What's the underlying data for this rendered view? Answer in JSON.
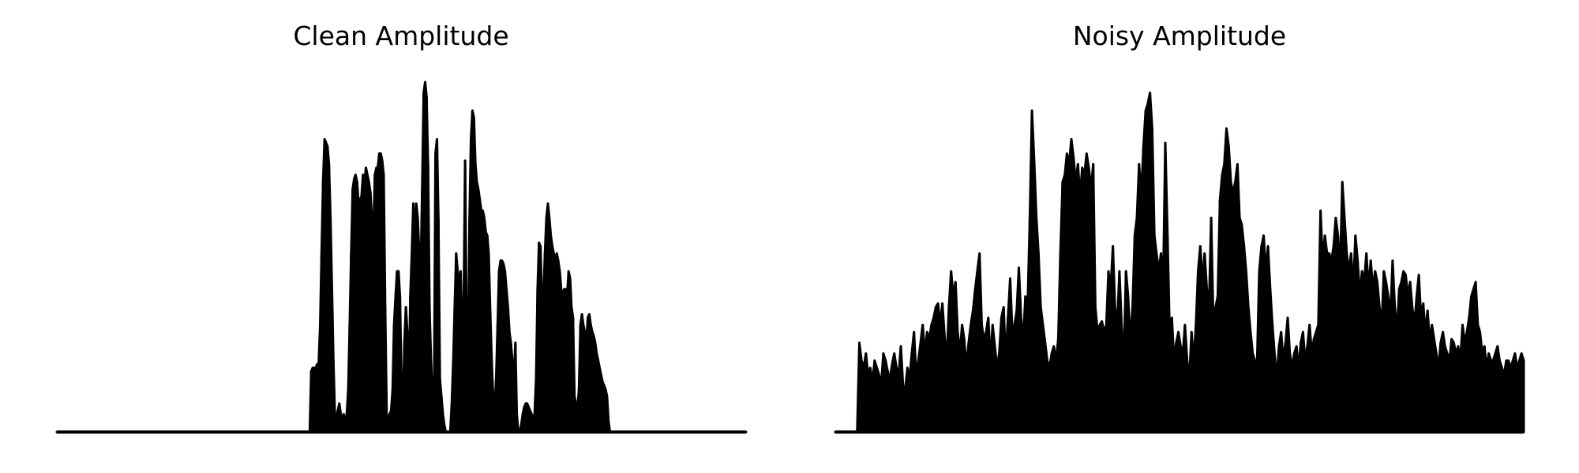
{
  "chart_data": [
    {
      "type": "area",
      "title": "Clean Amplitude",
      "xlabel": "",
      "ylabel": "",
      "axes_visible": false,
      "grid": false,
      "legend": "none",
      "color": "#000000",
      "ylim": [
        0,
        1
      ],
      "x_range": [
        0,
        1
      ],
      "series": [
        {
          "values": [
            0,
            0,
            0,
            0,
            0,
            0,
            0,
            0,
            0,
            0,
            0,
            0,
            0,
            0,
            0,
            0,
            0,
            0,
            0,
            0,
            0,
            0,
            0,
            0,
            0,
            0,
            0,
            0,
            0,
            0,
            0,
            0,
            0,
            0,
            0,
            0,
            0,
            0,
            0,
            0,
            0,
            0,
            0,
            0,
            0,
            0,
            0,
            0,
            0,
            0,
            0,
            0,
            0,
            0,
            0,
            0,
            0,
            0,
            0,
            0,
            0,
            0,
            0,
            0,
            0,
            0,
            0,
            0,
            0,
            0,
            0,
            0,
            0,
            0,
            0,
            0,
            0,
            0,
            0,
            0,
            0,
            0,
            0,
            0,
            0,
            0,
            0,
            0,
            0,
            0,
            0,
            0,
            0,
            0,
            0,
            0,
            0,
            0,
            0,
            0,
            0,
            0,
            0,
            0,
            0,
            0,
            0,
            0,
            0,
            0,
            0,
            0,
            0,
            0,
            0,
            0,
            0,
            0,
            0,
            0,
            0,
            0,
            0,
            0,
            0,
            0,
            0,
            0,
            0,
            0,
            0,
            0,
            0,
            0,
            0,
            0,
            0,
            0,
            0,
            0,
            0,
            0,
            0,
            0,
            0,
            0,
            0,
            0,
            0,
            0,
            0,
            0,
            0,
            0,
            0,
            0,
            0,
            0,
            0,
            0,
            0,
            0,
            0,
            0,
            0,
            0,
            0,
            0,
            0,
            0,
            0,
            0,
            0.17,
            0.18,
            0.18,
            0.18,
            0.19,
            0.19,
            0.3,
            0.5,
            0.7,
            0.82,
            0.81,
            0.8,
            0.75,
            0.6,
            0.4,
            0.2,
            0.05,
            0.04,
            0.06,
            0.08,
            0.05,
            0.03,
            0.05,
            0.03,
            0.05,
            0.12,
            0.3,
            0.5,
            0.68,
            0.71,
            0.72,
            0.7,
            0.64,
            0.65,
            0.66,
            0.72,
            0.7,
            0.74,
            0.72,
            0.7,
            0.67,
            0.6,
            0.55,
            0.72,
            0.74,
            0.74,
            0.78,
            0.78,
            0.76,
            0.72,
            0.35,
            0.05,
            0.04,
            0.05,
            0.06,
            0.12,
            0.3,
            0.38,
            0.45,
            0.45,
            0.38,
            0.15,
            0.05,
            0.25,
            0.35,
            0.28,
            0.12,
            0.38,
            0.5,
            0.64,
            0.55,
            0.64,
            0.6,
            0.5,
            0.45,
            0.68,
            0.95,
            0.98,
            0.94,
            0.75,
            0.34,
            0.2,
            0.1,
            0.08,
            0.78,
            0.82,
            0.6,
            0.15,
            0.1,
            0.05,
            0.02,
            0.0,
            0.0,
            0.0,
            0.0,
            0.08,
            0.2,
            0.35,
            0.5,
            0.45,
            0.4,
            0.45,
            0.3,
            0.33,
            0.76,
            0.3,
            0.2,
            0.6,
            0.82,
            0.9,
            0.88,
            0.75,
            0.7,
            0.68,
            0.65,
            0.62,
            0.62,
            0.6,
            0.56,
            0.55,
            0.5,
            0.34,
            0.2,
            0.1,
            0.06,
            0.15,
            0.3,
            0.45,
            0.48,
            0.48,
            0.47,
            0.45,
            0.4,
            0.35,
            0.28,
            0.25,
            0.2,
            0.15,
            0.25,
            0.05,
            0.0,
            0.0,
            0.02,
            0.05,
            0.07,
            0.08,
            0.08,
            0.07,
            0.06,
            0.05,
            0.04,
            0.05,
            0.15,
            0.4,
            0.53,
            0.52,
            0.35,
            0.38,
            0.5,
            0.6,
            0.64,
            0.6,
            0.55,
            0.52,
            0.5,
            0.48,
            0.5,
            0.48,
            0.45,
            0.4,
            0.38,
            0.4,
            0.4,
            0.38,
            0.45,
            0.43,
            0.35,
            0.32,
            0.1,
            0.08,
            0.06,
            0.12,
            0.3,
            0.33,
            0.3,
            0.28,
            0.25,
            0.32,
            0.33,
            0.3,
            0.28,
            0.27,
            0.25,
            0.22,
            0.2,
            0.18,
            0.16,
            0.14,
            0.13,
            0.12,
            0.1,
            0.03,
            0,
            0,
            0,
            0,
            0,
            0,
            0,
            0,
            0,
            0,
            0,
            0,
            0,
            0,
            0,
            0,
            0,
            0,
            0,
            0,
            0,
            0,
            0,
            0,
            0,
            0,
            0,
            0,
            0,
            0,
            0,
            0,
            0,
            0,
            0,
            0,
            0,
            0,
            0,
            0,
            0,
            0,
            0,
            0,
            0,
            0,
            0,
            0,
            0,
            0,
            0,
            0,
            0,
            0,
            0,
            0,
            0,
            0,
            0,
            0,
            0,
            0,
            0,
            0,
            0,
            0,
            0,
            0,
            0,
            0,
            0,
            0,
            0,
            0,
            0,
            0,
            0,
            0,
            0,
            0,
            0,
            0,
            0,
            0,
            0,
            0,
            0,
            0,
            0,
            0,
            0,
            0,
            0
          ]
        }
      ]
    },
    {
      "type": "area",
      "title": "Noisy Amplitude",
      "xlabel": "",
      "ylabel": "",
      "axes_visible": false,
      "grid": false,
      "legend": "none",
      "color": "#000000",
      "ylim": [
        0,
        1
      ],
      "x_range": [
        0,
        1
      ],
      "series": [
        {
          "values": [
            0,
            0,
            0,
            0,
            0,
            0,
            0,
            0,
            0,
            0,
            0,
            0.25,
            0.2,
            0.18,
            0.22,
            0.16,
            0.18,
            0.14,
            0.2,
            0.18,
            0.16,
            0.13,
            0.22,
            0.2,
            0.17,
            0.15,
            0.19,
            0.22,
            0.18,
            0.16,
            0.24,
            0.13,
            0.12,
            0.18,
            0.15,
            0.22,
            0.28,
            0.16,
            0.2,
            0.25,
            0.3,
            0.22,
            0.28,
            0.26,
            0.3,
            0.32,
            0.35,
            0.36,
            0.3,
            0.36,
            0.27,
            0.2,
            0.35,
            0.45,
            0.38,
            0.42,
            0.28,
            0.22,
            0.3,
            0.26,
            0.18,
            0.25,
            0.3,
            0.34,
            0.4,
            0.45,
            0.5,
            0.3,
            0.26,
            0.28,
            0.32,
            0.2,
            0.3,
            0.24,
            0.18,
            0.22,
            0.32,
            0.35,
            0.2,
            0.32,
            0.43,
            0.28,
            0.3,
            0.34,
            0.46,
            0.32,
            0.26,
            0.38,
            0.35,
            0.6,
            0.9,
            0.76,
            0.6,
            0.5,
            0.35,
            0.3,
            0.25,
            0.2,
            0.18,
            0.22,
            0.24,
            0.2,
            0.26,
            0.5,
            0.7,
            0.72,
            0.78,
            0.75,
            0.82,
            0.77,
            0.7,
            0.75,
            0.66,
            0.74,
            0.72,
            0.78,
            0.74,
            0.68,
            0.75,
            0.35,
            0.28,
            0.3,
            0.31,
            0.28,
            0.3,
            0.45,
            0.4,
            0.52,
            0.35,
            0.3,
            0.45,
            0.3,
            0.2,
            0.45,
            0.38,
            0.25,
            0.35,
            0.55,
            0.6,
            0.75,
            0.66,
            0.8,
            0.9,
            0.92,
            0.95,
            0.85,
            0.55,
            0.5,
            0.45,
            0.5,
            0.4,
            0.81,
            0.55,
            0.28,
            0.32,
            0.2,
            0.25,
            0.28,
            0.24,
            0.22,
            0.3,
            0.2,
            0.15,
            0.28,
            0.2,
            0.3,
            0.45,
            0.52,
            0.42,
            0.5,
            0.4,
            0.35,
            0.6,
            0.3,
            0.35,
            0.38,
            0.65,
            0.72,
            0.75,
            0.85,
            0.8,
            0.7,
            0.67,
            0.7,
            0.75,
            0.6,
            0.58,
            0.52,
            0.45,
            0.35,
            0.28,
            0.22,
            0.2,
            0.2,
            0.45,
            0.52,
            0.55,
            0.45,
            0.52,
            0.4,
            0.3,
            0.22,
            0.15,
            0.24,
            0.28,
            0.2,
            0.25,
            0.32,
            0.22,
            0.18,
            0.22,
            0.24,
            0.18,
            0.25,
            0.28,
            0.2,
            0.24,
            0.3,
            0.22,
            0.26,
            0.28,
            0.3,
            0.62,
            0.48,
            0.55,
            0.5,
            0.5,
            0.48,
            0.52,
            0.6,
            0.55,
            0.45,
            0.7,
            0.6,
            0.5,
            0.45,
            0.5,
            0.4,
            0.55,
            0.48,
            0.38,
            0.45,
            0.42,
            0.5,
            0.4,
            0.48,
            0.4,
            0.45,
            0.42,
            0.35,
            0.3,
            0.45,
            0.42,
            0.38,
            0.32,
            0.48,
            0.35,
            0.28,
            0.4,
            0.42,
            0.45,
            0.44,
            0.38,
            0.42,
            0.35,
            0.3,
            0.38,
            0.44,
            0.32,
            0.36,
            0.28,
            0.34,
            0.25,
            0.3,
            0.26,
            0.22,
            0.18,
            0.25,
            0.28,
            0.24,
            0.22,
            0.2,
            0.26,
            0.25,
            0.22,
            0.24,
            0.2,
            0.3,
            0.25,
            0.28,
            0.32,
            0.38,
            0.4,
            0.42,
            0.3,
            0.28,
            0.22,
            0.24,
            0.18,
            0.22,
            0.2,
            0.2,
            0.22,
            0.24,
            0.2,
            0.18,
            0.16,
            0.2,
            0.2,
            0.18,
            0.2,
            0.22,
            0.18,
            0.2,
            0.22,
            0.2
          ]
        }
      ]
    }
  ]
}
